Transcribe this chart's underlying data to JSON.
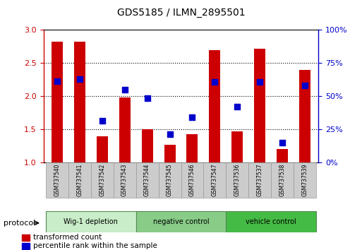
{
  "title": "GDS5185 / ILMN_2895501",
  "samples": [
    "GSM737540",
    "GSM737541",
    "GSM737542",
    "GSM737543",
    "GSM737544",
    "GSM737545",
    "GSM737546",
    "GSM737547",
    "GSM737536",
    "GSM737537",
    "GSM737538",
    "GSM737539"
  ],
  "bar_values": [
    2.82,
    2.82,
    1.4,
    1.98,
    1.5,
    1.27,
    1.43,
    2.7,
    1.47,
    2.72,
    1.2,
    2.4
  ],
  "dot_values": [
    2.23,
    2.26,
    1.63,
    2.1,
    1.97,
    1.43,
    1.68,
    2.22,
    1.84,
    2.22,
    1.3,
    2.16
  ],
  "bar_color": "#CC0000",
  "dot_color": "#0000CC",
  "groups": [
    {
      "label": "Wig-1 depletion",
      "start": 0,
      "end": 3,
      "color": "#c8edc8"
    },
    {
      "label": "negative control",
      "start": 4,
      "end": 7,
      "color": "#88cc88"
    },
    {
      "label": "vehicle control",
      "start": 8,
      "end": 11,
      "color": "#44bb44"
    }
  ],
  "ylim_left": [
    1.0,
    3.0
  ],
  "ylim_right": [
    0,
    100
  ],
  "yticks_left": [
    1.0,
    1.5,
    2.0,
    2.5,
    3.0
  ],
  "yticks_right": [
    0,
    25,
    50,
    75,
    100
  ],
  "ytick_labels_right": [
    "0%",
    "25%",
    "50%",
    "75%",
    "100%"
  ],
  "ylabel_left_color": "#CC0000",
  "ylabel_right_color": "#0000CC",
  "bar_width": 0.5,
  "legend_red_label": "transformed count",
  "legend_blue_label": "percentile rank within the sample",
  "protocol_label": "protocol",
  "grid_yvals": [
    1.5,
    2.0,
    2.5
  ]
}
